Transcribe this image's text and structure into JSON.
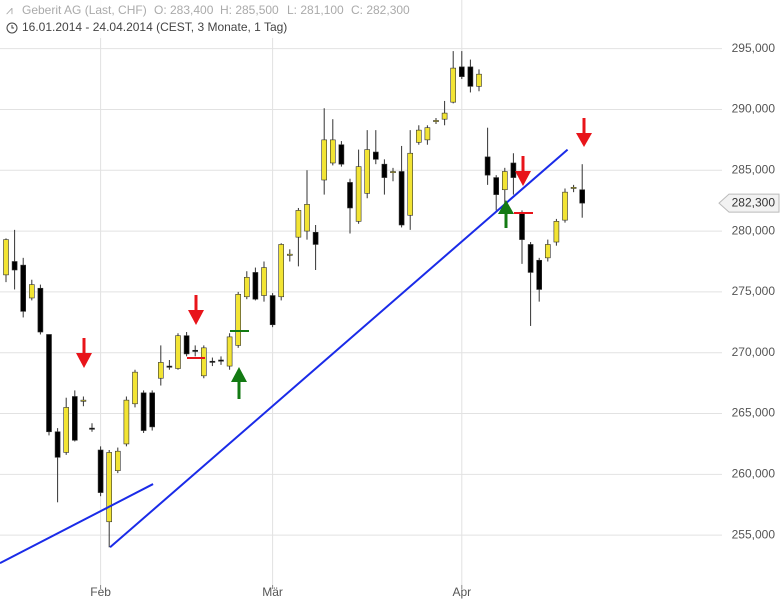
{
  "header": {
    "name": "Geberit AG (Last, CHF)",
    "stats": [
      "O: 283,400",
      "H: 285,500",
      "L: 281,100",
      "C: 282,300"
    ],
    "period": "16.01.2014 - 24.04.2014 (CEST, 3 Monate, 1 Tag)"
  },
  "chart_data": {
    "type": "candlestick",
    "categories": [
      null,
      null,
      null,
      null,
      null,
      null,
      null,
      null,
      null,
      null,
      null,
      "Feb",
      null,
      null,
      null,
      null,
      null,
      null,
      null,
      null,
      null,
      null,
      null,
      null,
      null,
      null,
      null,
      null,
      null,
      null,
      null,
      "Mär",
      null,
      null,
      null,
      null,
      null,
      null,
      null,
      null,
      null,
      null,
      null,
      null,
      null,
      null,
      null,
      null,
      null,
      null,
      null,
      null,
      null,
      "Apr",
      null,
      null,
      null,
      null,
      null,
      null,
      null,
      null,
      null,
      null,
      null,
      null,
      null,
      null
    ],
    "open": [
      276400,
      277500,
      277200,
      274500,
      275300,
      271500,
      263500,
      261800,
      266400,
      266000,
      263800,
      262000,
      256100,
      260300,
      262500,
      265800,
      266700,
      266700,
      267900,
      268900,
      268700,
      271400,
      270200,
      268100,
      269300,
      269400,
      268900,
      270600,
      274600,
      276600,
      274700,
      274700,
      274600,
      278000,
      279500,
      280000,
      279900,
      284200,
      285600,
      287100,
      284000,
      280800,
      283100,
      286500,
      285500,
      284800,
      284900,
      281300,
      287300,
      287500,
      289000,
      289200,
      290600,
      293500,
      293500,
      291900,
      286100,
      284400,
      283400,
      285600,
      281500,
      278900,
      277600,
      277800,
      279100,
      280900,
      283500,
      283400
    ],
    "high": [
      279400,
      280100,
      277800,
      276000,
      275600,
      271500,
      263800,
      266300,
      266900,
      266400,
      264200,
      262300,
      262000,
      262200,
      266400,
      268600,
      266900,
      266900,
      270600,
      269400,
      271600,
      271700,
      270600,
      270600,
      269600,
      269700,
      271600,
      275000,
      276700,
      277000,
      277500,
      274900,
      279000,
      278500,
      281900,
      285000,
      280500,
      290100,
      289200,
      287400,
      284300,
      286700,
      288300,
      288300,
      285900,
      285200,
      287000,
      288300,
      288700,
      288700,
      289300,
      290700,
      294800,
      294800,
      294100,
      293300,
      288500,
      284600,
      285200,
      286400,
      281700,
      279100,
      277800,
      279300,
      281000,
      283500,
      283800,
      285500
    ],
    "low": [
      275800,
      275200,
      272900,
      274300,
      271500,
      263200,
      257700,
      261600,
      262700,
      265600,
      263500,
      258200,
      254000,
      260100,
      262300,
      265500,
      263400,
      263600,
      267300,
      268600,
      268600,
      269700,
      269700,
      267900,
      268900,
      269000,
      268600,
      270400,
      274400,
      274300,
      274200,
      272100,
      274300,
      277500,
      277100,
      279300,
      276800,
      283000,
      285400,
      285300,
      279800,
      280600,
      282700,
      285500,
      283000,
      284100,
      280300,
      280100,
      287100,
      287100,
      288800,
      288700,
      290500,
      292500,
      291400,
      291500,
      283800,
      281700,
      282100,
      283000,
      277300,
      272200,
      274200,
      277500,
      278800,
      280700,
      283200,
      281100
    ],
    "close": [
      279300,
      276800,
      273400,
      275600,
      271700,
      263500,
      261400,
      265500,
      262800,
      266100,
      263700,
      258500,
      261800,
      261900,
      266100,
      268400,
      263600,
      263900,
      269200,
      268800,
      271400,
      269900,
      270100,
      270400,
      269200,
      269300,
      271300,
      274800,
      276200,
      274400,
      277000,
      272300,
      278900,
      278100,
      281700,
      282200,
      278900,
      287500,
      287500,
      285500,
      281900,
      285300,
      286700,
      285900,
      284400,
      284900,
      280500,
      286400,
      288300,
      288500,
      289100,
      289700,
      293400,
      292700,
      291900,
      292900,
      284600,
      283000,
      284900,
      284400,
      279300,
      276600,
      275200,
      278900,
      280800,
      283200,
      283600,
      282300
    ],
    "up_color": "#f2e434",
    "down_color": "#000000",
    "ylim": [
      250900,
      299000
    ],
    "yticks": [
      {
        "value": 255000,
        "label": "255,000"
      },
      {
        "value": 260000,
        "label": "260,000"
      },
      {
        "value": 265000,
        "label": "265,000"
      },
      {
        "value": 270000,
        "label": "270,000"
      },
      {
        "value": 275000,
        "label": "275,000"
      },
      {
        "value": 280000,
        "label": "280,000"
      },
      {
        "value": 285000,
        "label": "285,000"
      },
      {
        "value": 290000,
        "label": "290,000"
      },
      {
        "value": 295000,
        "label": "295,000"
      }
    ],
    "grid": true,
    "last_price": {
      "value": 282300,
      "label": "282,300"
    },
    "trendline_color": "#1a2be8",
    "trendlines": [
      {
        "x": [
          -0.7,
          17.1
        ],
        "y": [
          252700,
          259200
        ]
      },
      {
        "x": [
          12.1,
          65.3
        ],
        "y": [
          254000,
          286700
        ]
      }
    ]
  }
}
